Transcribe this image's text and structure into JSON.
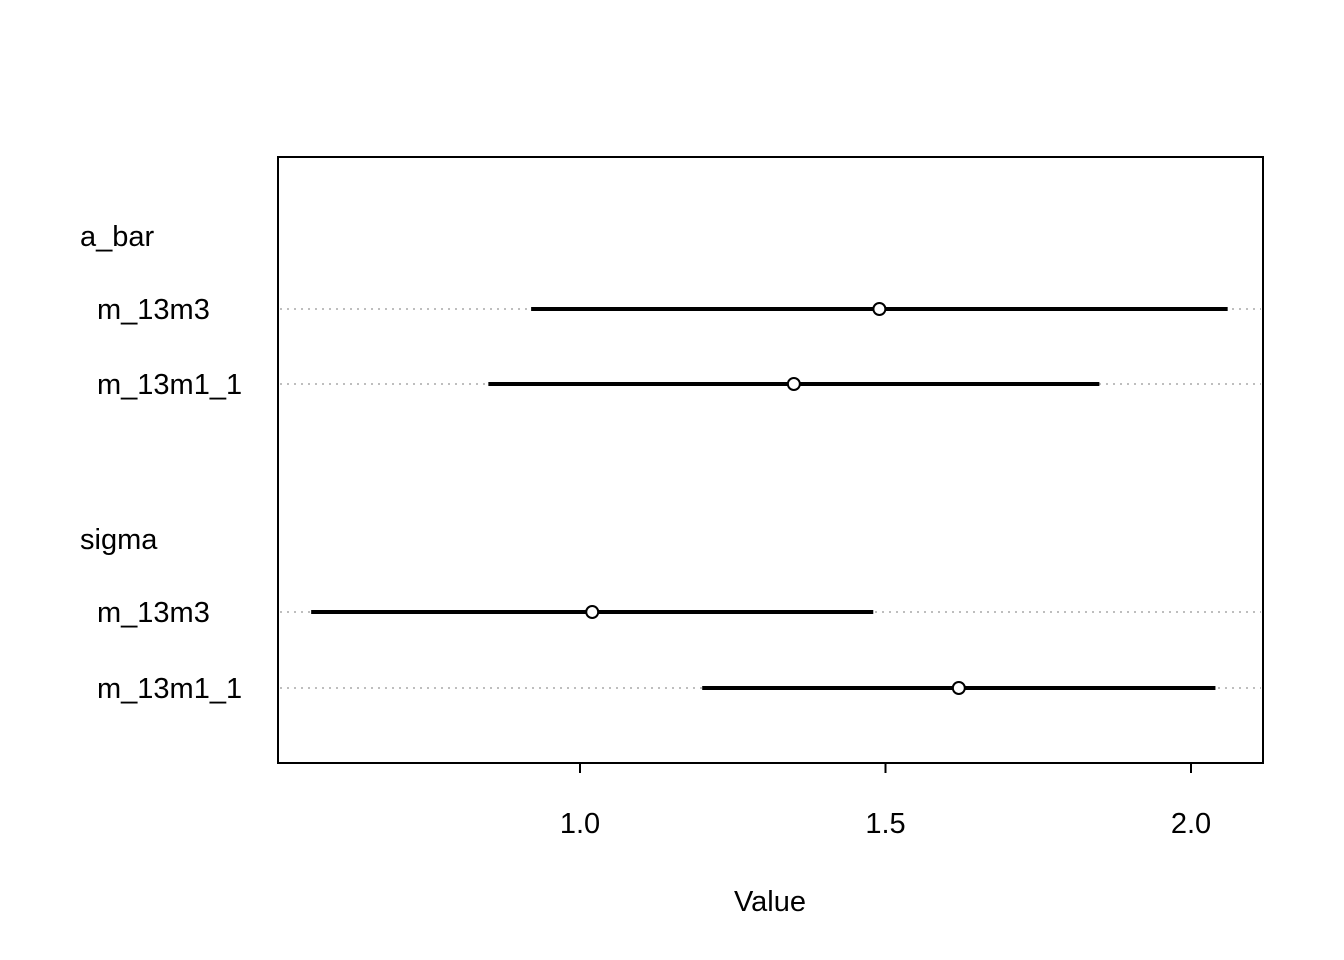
{
  "chart_data": {
    "type": "forest",
    "xlabel": "Value",
    "x_ticks": [
      1.0,
      1.5,
      2.0
    ],
    "x_tick_labels": [
      "1.0",
      "1.5",
      "2.0"
    ],
    "xlim": [
      0.5,
      2.1
    ],
    "groups": [
      {
        "name": "a_bar",
        "rows": [
          {
            "label": "m_13m3",
            "mean": 1.49,
            "lower": 0.92,
            "upper": 2.06
          },
          {
            "label": "m_13m1_1",
            "mean": 1.35,
            "lower": 0.85,
            "upper": 1.85
          }
        ]
      },
      {
        "name": "sigma",
        "rows": [
          {
            "label": "m_13m3",
            "mean": 1.02,
            "lower": 0.56,
            "upper": 1.48
          },
          {
            "label": "m_13m1_1",
            "mean": 1.62,
            "lower": 1.2,
            "upper": 2.04
          }
        ]
      }
    ],
    "colors": {
      "interval": "#000000",
      "guide": "#bebebe",
      "frame": "#000000"
    }
  }
}
